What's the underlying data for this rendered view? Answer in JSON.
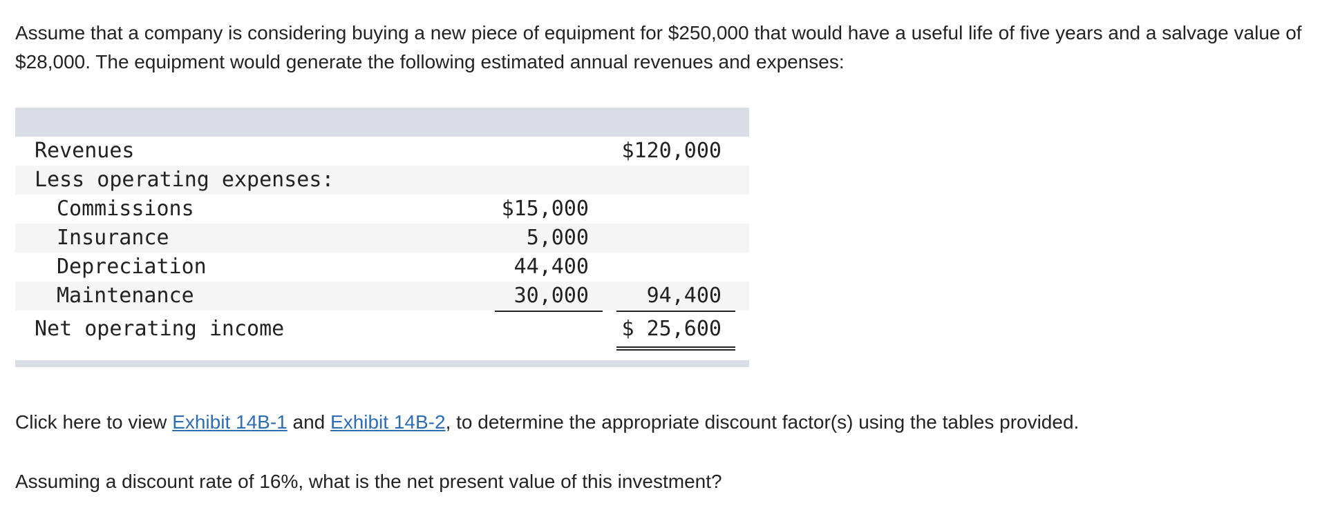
{
  "intro_text": "Assume that a company is considering buying a new piece of equipment for $250,000 that would have a useful life of five years and a salvage value of $28,000. The equipment would generate the following estimated annual revenues and expenses:",
  "income_table": {
    "rows": [
      {
        "label": "Revenues",
        "col1": "",
        "col2": "$120,000"
      },
      {
        "label": "Less operating expenses:",
        "col1": "",
        "col2": ""
      },
      {
        "label": "Commissions",
        "col1": "$15,000",
        "col2": ""
      },
      {
        "label": "Insurance",
        "col1": "5,000",
        "col2": ""
      },
      {
        "label": "Depreciation",
        "col1": "44,400",
        "col2": ""
      },
      {
        "label": "Maintenance",
        "col1": "30,000",
        "col2": "94,400"
      },
      {
        "label": "Net operating income",
        "col1": "",
        "col2": "$ 25,600"
      }
    ]
  },
  "exhibit_line": {
    "prefix": "Click here to view ",
    "link1": "Exhibit 14B-1",
    "middle": " and ",
    "link2": "Exhibit 14B-2",
    "suffix": ", to determine the appropriate discount factor(s) using the tables provided."
  },
  "question_text": "Assuming a discount rate of 16%, what is the net present value of this investment?",
  "colors": {
    "link": "#2f6db3",
    "table_bar": "#d9dde6",
    "row_shade": "#f5f5f5"
  }
}
